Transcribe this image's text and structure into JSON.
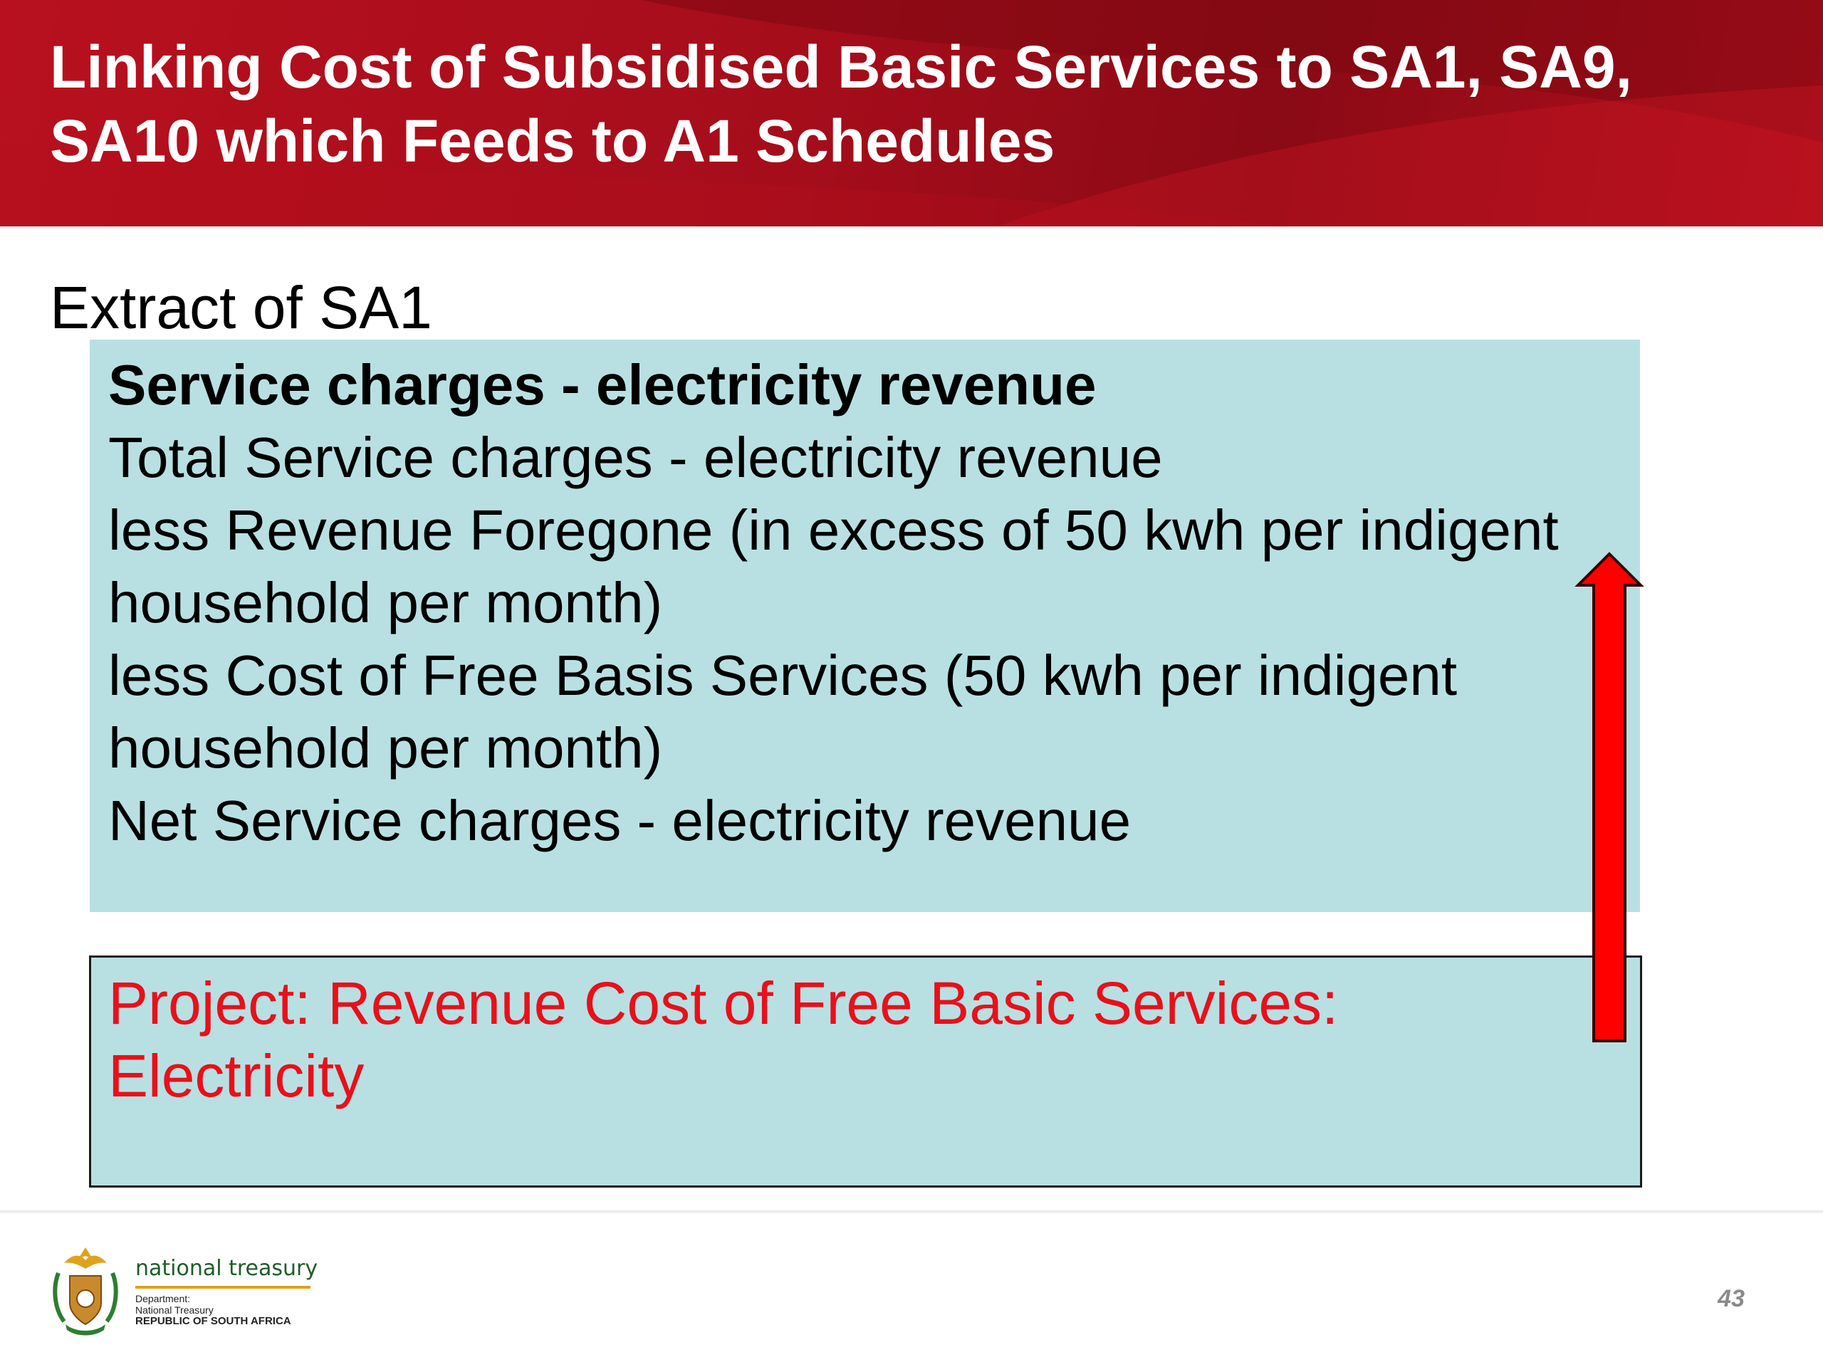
{
  "slide": {
    "title": "Linking Cost of Subsidised Basic Services to SA1, SA9, SA10 which Feeds to A1 Schedules",
    "extract_label": "Extract of SA1",
    "sa1_lines": [
      "Service charges - electricity revenue",
      "Total Service charges - electricity revenue",
      "less Revenue Foregone (in excess of 50 kwh per indigent household per month)",
      "less Cost of Free Basis Services (50 kwh per indigent household per month)",
      "Net Service charges - electricity revenue"
    ],
    "project_text": "Project: Revenue Cost of Free Basic Services: Electricity",
    "page_number": "43"
  },
  "footer": {
    "logo_name": "national treasury",
    "logo_dept_line1": "Department:",
    "logo_dept_line2": "National Treasury",
    "logo_country": "REPUBLIC OF SOUTH AFRICA"
  },
  "colors": {
    "header_red": "#b8101e",
    "box_fill": "#b8e0e3",
    "project_text_red": "#e8101a",
    "arrow_red": "#ff0000",
    "logo_green": "#1e5c2a",
    "logo_gold": "#e0a21b"
  },
  "icons": {
    "arrow": "up-arrow-icon",
    "crest": "coat-of-arms-icon"
  }
}
